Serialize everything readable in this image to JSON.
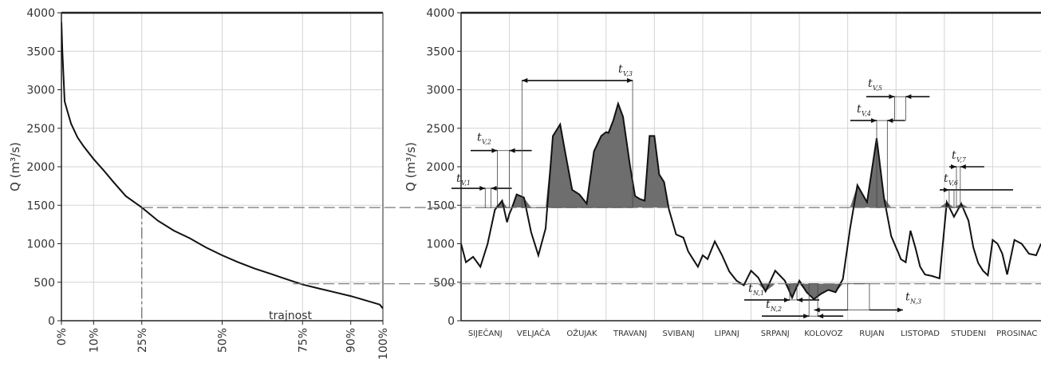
{
  "chart_data": [
    {
      "type": "line",
      "ylabel": "Q (m³/s)",
      "ylim": [
        0,
        4000
      ],
      "yticks": [
        "0",
        "500",
        "1000",
        "1500",
        "2000",
        "2500",
        "3000",
        "3500",
        "4000"
      ],
      "xlim": [
        0,
        100
      ],
      "xticks": [
        "0%",
        "10%",
        "25%",
        "50%",
        "75%",
        "90%",
        "100%"
      ],
      "grid": true,
      "annotation": "trajnost",
      "reference_lines": [
        1470,
        480
      ],
      "reference_x": 25,
      "x": [
        0,
        0.3,
        1,
        2,
        3,
        5,
        7,
        10,
        13,
        16,
        20,
        25,
        30,
        35,
        40,
        45,
        50,
        55,
        60,
        65,
        70,
        75,
        80,
        85,
        90,
        95,
        99,
        100
      ],
      "y": [
        3880,
        3500,
        2850,
        2700,
        2560,
        2380,
        2260,
        2100,
        1960,
        1810,
        1620,
        1470,
        1300,
        1170,
        1070,
        950,
        850,
        760,
        680,
        610,
        540,
        470,
        420,
        370,
        320,
        260,
        210,
        160
      ]
    },
    {
      "type": "area",
      "ylabel": "Q (m³/s)",
      "ylim": [
        0,
        4000
      ],
      "yticks": [
        "0",
        "500",
        "1000",
        "1500",
        "2000",
        "2500",
        "3000",
        "3500",
        "4000"
      ],
      "xlim": [
        0,
        12
      ],
      "months": [
        "SIJEČANJ",
        "VELJAČA",
        "OŽUJAK",
        "TRAVANJ",
        "SVIBANJ",
        "LIPANJ",
        "SRPANJ",
        "KOLOVOZ",
        "RUJAN",
        "LISTOPAD",
        "STUDENI",
        "PROSINAC"
      ],
      "grid": true,
      "threshold_high": 1470,
      "threshold_low": 480,
      "annotations": {
        "v1": {
          "t": "t",
          "s": "V,1"
        },
        "v2": {
          "t": "t",
          "s": "V,2"
        },
        "v3": {
          "t": "t",
          "s": "V,3"
        },
        "v4": {
          "t": "t",
          "s": "V,4"
        },
        "v5": {
          "t": "t",
          "s": "V,5"
        },
        "v6": {
          "t": "t",
          "s": "V,6"
        },
        "v7": {
          "t": "t",
          "s": "V,7"
        },
        "n1": {
          "t": "t",
          "s": "N,1"
        },
        "n2": {
          "t": "t",
          "s": "N,2"
        },
        "n3": {
          "t": "t",
          "s": "N,3"
        }
      },
      "x": [
        0,
        0.1,
        0.25,
        0.4,
        0.55,
        0.7,
        0.85,
        0.95,
        1.0,
        1.05,
        1.15,
        1.3,
        1.45,
        1.6,
        1.75,
        1.9,
        2.0,
        2.05,
        2.15,
        2.3,
        2.45,
        2.6,
        2.75,
        2.9,
        3.0,
        3.05,
        3.15,
        3.25,
        3.35,
        3.5,
        3.6,
        3.7,
        3.8,
        3.9,
        4.0,
        4.1,
        4.2,
        4.3,
        4.45,
        4.6,
        4.7,
        4.8,
        4.9,
        5.0,
        5.1,
        5.25,
        5.4,
        5.55,
        5.7,
        5.85,
        6.0,
        6.15,
        6.3,
        6.5,
        6.7,
        6.85,
        7.0,
        7.15,
        7.3,
        7.45,
        7.6,
        7.75,
        7.9,
        8.05,
        8.2,
        8.4,
        8.6,
        8.75,
        8.9,
        9.0,
        9.05,
        9.1,
        9.2,
        9.3,
        9.4,
        9.5,
        9.6,
        9.75,
        9.9,
        10.05,
        10.2,
        10.35,
        10.5,
        10.6,
        10.7,
        10.8,
        10.9,
        11.0,
        11.1,
        11.2,
        11.3,
        11.45,
        11.6,
        11.75,
        11.9,
        12.0
      ],
      "y": [
        1000,
        760,
        830,
        700,
        1000,
        1440,
        1560,
        1280,
        1390,
        1460,
        1640,
        1600,
        1150,
        850,
        1200,
        2400,
        2500,
        2550,
        2200,
        1700,
        1640,
        1520,
        2200,
        2400,
        2450,
        2440,
        2600,
        2820,
        2650,
        2000,
        1620,
        1580,
        1560,
        2400,
        2400,
        1900,
        1800,
        1450,
        1120,
        1080,
        900,
        800,
        700,
        850,
        800,
        1030,
        850,
        640,
        520,
        460,
        650,
        560,
        380,
        650,
        520,
        300,
        520,
        370,
        280,
        350,
        400,
        370,
        540,
        1200,
        1760,
        1540,
        2370,
        1600,
        1100,
        950,
        880,
        800,
        760,
        1170,
        950,
        700,
        600,
        580,
        550,
        1540,
        1350,
        1520,
        1300,
        950,
        750,
        650,
        590,
        1050,
        1000,
        870,
        600,
        1050,
        1000,
        870,
        850,
        1000
      ]
    }
  ]
}
